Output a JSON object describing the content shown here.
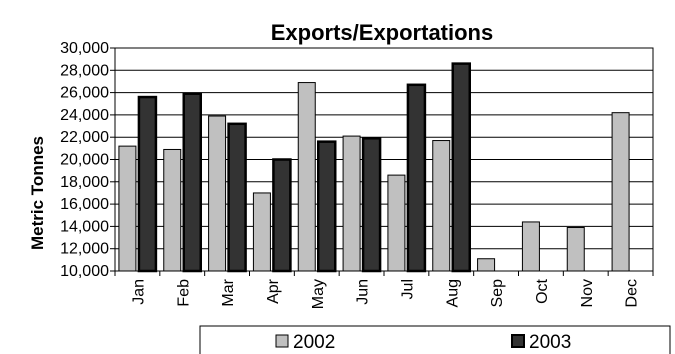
{
  "chart_data": {
    "type": "bar",
    "title": "Exports/Exportations",
    "xlabel": "",
    "ylabel": "Metric Tonnes",
    "categories": [
      "Jan",
      "Feb",
      "Mar",
      "Apr",
      "May",
      "Jun",
      "Jul",
      "Aug",
      "Sep",
      "Oct",
      "Nov",
      "Dec"
    ],
    "series": [
      {
        "name": "2002",
        "color": "#c0c0c0",
        "values": [
          21200,
          20900,
          23900,
          17000,
          26900,
          22100,
          18600,
          21700,
          11100,
          14400,
          13900,
          24200
        ]
      },
      {
        "name": "2003",
        "color": "#333333",
        "values": [
          25600,
          25900,
          23200,
          20000,
          21600,
          21900,
          26700,
          28600,
          null,
          null,
          null,
          null
        ]
      }
    ],
    "ylim": [
      10000,
      30000
    ],
    "yticks": [
      10000,
      12000,
      14000,
      16000,
      18000,
      20000,
      22000,
      24000,
      26000,
      28000,
      30000
    ],
    "ytick_labels": [
      "10,000",
      "12,000",
      "14,000",
      "16,000",
      "18,000",
      "20,000",
      "22,000",
      "24,000",
      "26,000",
      "28,000",
      "30,000"
    ],
    "grid": true,
    "legend_position": "bottom"
  }
}
